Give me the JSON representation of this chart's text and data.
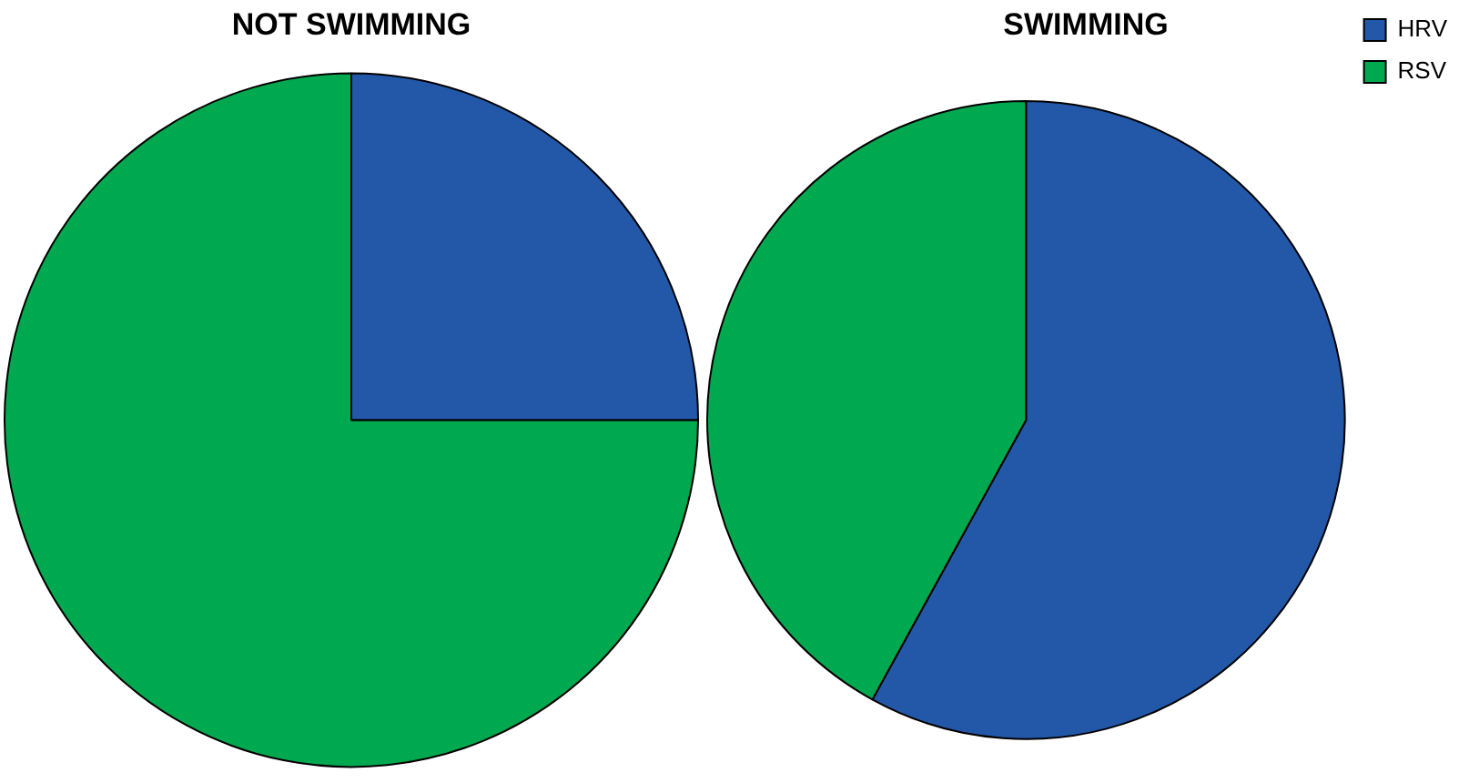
{
  "chart_data": {
    "type": "pie",
    "categories": [
      "HRV",
      "RSV"
    ],
    "colors": [
      "#2358a8",
      "#00a84f"
    ],
    "legend": "top right",
    "series": [
      {
        "name": "NOT SWIMMING",
        "values": [
          25,
          75
        ]
      },
      {
        "name": "SWIMMING",
        "values": [
          58,
          42
        ]
      }
    ]
  }
}
